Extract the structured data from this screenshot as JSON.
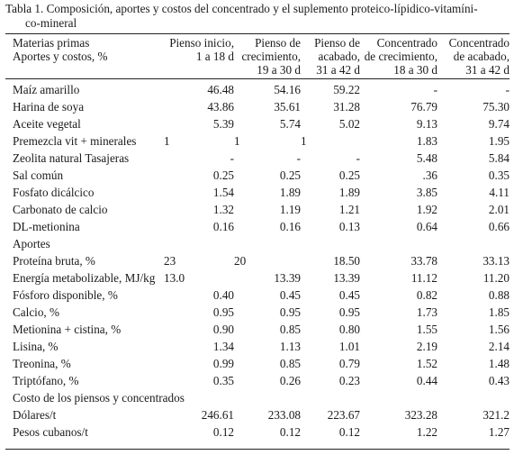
{
  "caption": {
    "line1": "Tabla 1. Composición, aportes y costos del concentrado y el suplemento proteico-lípidico-vitamíni-",
    "line2": "co-mineral"
  },
  "header": {
    "label_line1": "Materias primas",
    "label_line2": "Aportes y costos, %",
    "columns": [
      {
        "line1": "Pienso  inicio,",
        "line2": "1 a 18 d",
        "line3": ""
      },
      {
        "line1": "Pienso de",
        "line2": "crecimiento,",
        "line3": "19 a 30 d"
      },
      {
        "line1": "Pienso de",
        "line2": "acabado,",
        "line3": "31 a 42 d"
      },
      {
        "line1": "Concentrado",
        "line2": "de crecimiento,",
        "line3": "18 a 30 d"
      },
      {
        "line1": "Concentrado",
        "line2": "de acabado,",
        "line3": "31 a 42 d"
      }
    ]
  },
  "rows": [
    {
      "type": "data",
      "label": "Maíz amarillo",
      "values": [
        "46.48",
        "54.16",
        "59.22",
        "-",
        "-"
      ]
    },
    {
      "type": "data",
      "label": "Harina de soya",
      "values": [
        "43.86",
        "35.61",
        "31.28",
        "76.79",
        "75.30"
      ]
    },
    {
      "type": "data",
      "label": "Aceite vegetal",
      "values": [
        "5.39",
        "5.74",
        "5.02",
        "9.13",
        "9.74"
      ]
    },
    {
      "type": "data",
      "label": "Premezcla vit + minerales",
      "values": [
        "1",
        "1",
        "1",
        "1.83",
        "1.95"
      ],
      "left": [
        true,
        true,
        true,
        false,
        false
      ]
    },
    {
      "type": "data",
      "label": "Zeolita natural Tasajeras",
      "values": [
        "-",
        "-",
        "-",
        "5.48",
        "5.84"
      ]
    },
    {
      "type": "data",
      "label": "Sal común",
      "values": [
        "0.25",
        "0.25",
        "0.25",
        ".36",
        "0.35"
      ]
    },
    {
      "type": "data",
      "label": "Fosfato dicálcico",
      "values": [
        "1.54",
        "1.89",
        "1.89",
        "3.85",
        "4.11"
      ]
    },
    {
      "type": "data",
      "label": "Carbonato de calcio",
      "values": [
        "1.32",
        "1.19",
        "1.21",
        "1.92",
        "2.01"
      ]
    },
    {
      "type": "data",
      "label": "DL-metionina",
      "values": [
        "0.16",
        "0.16",
        "0.13",
        "0.64",
        "0.66"
      ]
    },
    {
      "type": "section",
      "label": "Aportes"
    },
    {
      "type": "data",
      "label": "Proteína bruta, %",
      "values": [
        "23",
        "20",
        "18.50",
        "33.78",
        "33.13"
      ],
      "left": [
        true,
        true,
        false,
        false,
        false
      ]
    },
    {
      "type": "data",
      "label": "Energía metabolizable, MJ/kg",
      "values": [
        "13.0",
        "13.39",
        "13.39",
        "11.12",
        "11.20"
      ],
      "left": [
        true,
        false,
        false,
        false,
        false
      ]
    },
    {
      "type": "data",
      "label": "Fósforo disponible, %",
      "values": [
        "0.40",
        "0.45",
        "0.45",
        "0.82",
        "0.88"
      ]
    },
    {
      "type": "data",
      "label": "Calcio, %",
      "values": [
        "0.95",
        "0.95",
        "0.95",
        "1.73",
        "1.85"
      ]
    },
    {
      "type": "data",
      "label": "Metionina + cistina, %",
      "values": [
        "0.90",
        "0.85",
        "0.80",
        "1.55",
        "1.56"
      ]
    },
    {
      "type": "data",
      "label": "Lisina, %",
      "values": [
        "1.34",
        "1.13",
        "1.01",
        "2.19",
        "2.14"
      ]
    },
    {
      "type": "data",
      "label": "Treonina, %",
      "values": [
        "0.99",
        "0.85",
        "0.79",
        "1.52",
        "1.48"
      ]
    },
    {
      "type": "data",
      "label": "Triptófano, %",
      "values": [
        "0.35",
        "0.26",
        "0.23",
        "0.44",
        "0.43"
      ]
    },
    {
      "type": "section",
      "label": "Costo de los piensos y concentrados"
    },
    {
      "type": "data",
      "label": "Dólares/t",
      "values": [
        "246.61",
        "233.08",
        "223.67",
        "323.28",
        "321.2"
      ]
    },
    {
      "type": "data",
      "label": "Pesos cubanos/t",
      "values": [
        "0.12",
        "0.12",
        "0.12",
        "1.22",
        "1.27"
      ]
    }
  ]
}
